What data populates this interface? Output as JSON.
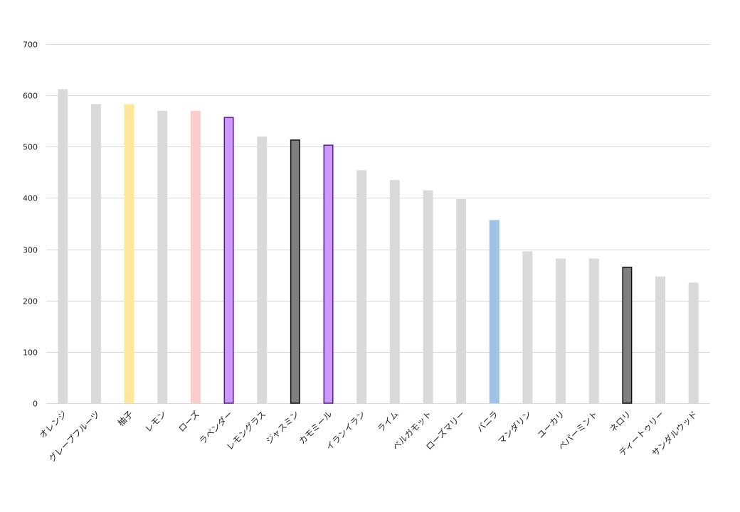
{
  "chart_data": {
    "type": "bar",
    "title": "",
    "xlabel": "",
    "ylabel": "",
    "ylim": [
      0,
      700
    ],
    "yticks": [
      0,
      100,
      200,
      300,
      400,
      500,
      600,
      700
    ],
    "grid": true,
    "legend": "none",
    "categories": [
      "オレンジ",
      "グレープフルーツ",
      "柚子",
      "レモン",
      "ローズ",
      "ラベンダー",
      "レモングラス",
      "ジャスミン",
      "カモミール",
      "イランイラン",
      "ライム",
      "ベルガモット",
      "ローズマリー",
      "バニラ",
      "マンダリン",
      "ユーカリ",
      "ペパーミント",
      "ネロリ",
      "ティートゥリー",
      "サンダルウッド"
    ],
    "values": [
      612,
      583,
      583,
      570,
      570,
      558,
      520,
      514,
      504,
      454,
      435,
      415,
      398,
      357,
      296,
      282,
      282,
      266,
      247,
      235
    ],
    "bar_fill": [
      "#d9d9d9",
      "#d9d9d9",
      "#ffe699",
      "#d9d9d9",
      "#ffcccc",
      "#cc99ff",
      "#d9d9d9",
      "#7f7f7f",
      "#cc99ff",
      "#d9d9d9",
      "#d9d9d9",
      "#d9d9d9",
      "#d9d9d9",
      "#9dc3e6",
      "#d9d9d9",
      "#d9d9d9",
      "#d9d9d9",
      "#7f7f7f",
      "#d9d9d9",
      "#d9d9d9"
    ],
    "bar_stroke": [
      "none",
      "none",
      "none",
      "none",
      "none",
      "#5a1e8c",
      "none",
      "#111111",
      "#5a1e8c",
      "none",
      "none",
      "none",
      "none",
      "none",
      "none",
      "none",
      "none",
      "#111111",
      "none",
      "none"
    ],
    "colors": {
      "grid": "#d9d9d9",
      "axis": "#bfbfbf",
      "text": "#222222"
    }
  }
}
